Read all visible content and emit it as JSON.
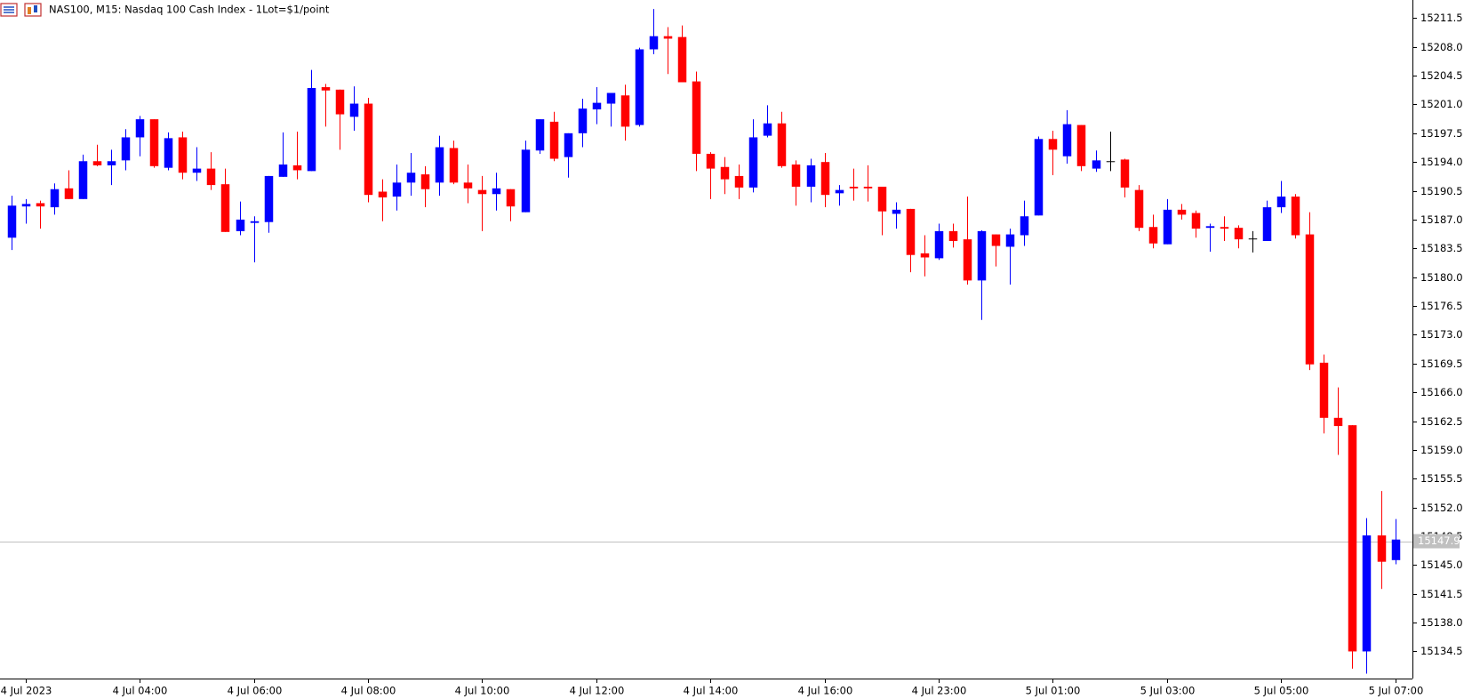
{
  "chart_data": {
    "type": "candlestick",
    "title": "NAS100, M15:  Nasdaq 100 Cash Index - 1Lot=$1/point",
    "categories": [
      null,
      "4 Jul 2023",
      null,
      null,
      null,
      null,
      null,
      null,
      null,
      "4 Jul 04:00",
      null,
      null,
      null,
      null,
      null,
      null,
      null,
      "4 Jul 06:00",
      null,
      null,
      null,
      null,
      null,
      null,
      null,
      "4 Jul 08:00",
      null,
      null,
      null,
      null,
      null,
      null,
      null,
      "4 Jul 10:00",
      null,
      null,
      null,
      null,
      null,
      null,
      null,
      "4 Jul 12:00",
      null,
      null,
      null,
      null,
      null,
      null,
      null,
      "4 Jul 14:00",
      null,
      null,
      null,
      null,
      null,
      null,
      null,
      "4 Jul 16:00",
      null,
      null,
      null,
      null,
      null,
      null,
      null,
      "4 Jul 23:00",
      null,
      null,
      null,
      null,
      null,
      null,
      null,
      "5 Jul 01:00",
      null,
      null,
      null,
      null,
      null,
      null,
      null,
      "5 Jul 03:00",
      null,
      null,
      null,
      null,
      null,
      null,
      null,
      "5 Jul 05:00",
      null,
      null,
      null,
      null,
      null,
      null,
      null,
      "5 Jul 07:00"
    ],
    "open": [
      15184.8,
      15188.6,
      15189.0,
      15188.5,
      15190.8,
      15189.5,
      15194.1,
      15193.6,
      15194.2,
      15197.0,
      15199.2,
      15193.3,
      15197.0,
      15192.7,
      15193.2,
      15191.3,
      15185.6,
      15186.6,
      15186.7,
      15192.2,
      15193.6,
      15192.9,
      15203.1,
      15202.8,
      15199.5,
      15201.1,
      15190.4,
      15189.8,
      15191.5,
      15192.5,
      15191.5,
      15195.7,
      15191.5,
      15190.6,
      15190.1,
      15190.7,
      15187.9,
      15195.4,
      15198.9,
      15194.6,
      15197.5,
      15200.4,
      15201.1,
      15202.1,
      15198.5,
      15207.7,
      15209.3,
      15209.2,
      15203.8,
      15195.0,
      15193.4,
      15192.3,
      15190.9,
      15197.2,
      15198.7,
      15193.7,
      15191.0,
      15194.0,
      15190.2,
      15191.0,
      15191.0,
      15191.0,
      15187.7,
      15188.3,
      15182.9,
      15182.3,
      15185.6,
      15184.6,
      15179.6,
      15185.2,
      15183.7,
      15185.1,
      15187.5,
      15196.8,
      15194.7,
      15198.5,
      15193.2,
      15194.1,
      15194.3,
      15190.6,
      15186.1,
      15184.0,
      15188.2,
      15187.8,
      15186.0,
      15186.1,
      15186.0,
      15184.7,
      15184.4,
      15188.5,
      15189.8,
      15185.2,
      15169.6,
      15162.9,
      15162.0,
      15134.5,
      15148.6,
      15145.6
    ],
    "high": [
      15189.9,
      15189.5,
      15189.3,
      15191.4,
      15193.0,
      15194.9,
      15196.1,
      15195.5,
      15198.0,
      15199.6,
      15199.2,
      15197.6,
      15197.7,
      15195.8,
      15195.2,
      15193.2,
      15189.2,
      15187.4,
      15192.3,
      15197.6,
      15197.7,
      15205.2,
      15203.5,
      15202.8,
      15203.2,
      15201.8,
      15191.9,
      15193.7,
      15195.1,
      15193.5,
      15197.2,
      15196.6,
      15193.7,
      15192.3,
      15192.7,
      15190.7,
      15196.6,
      15199.2,
      15200.1,
      15197.5,
      15201.7,
      15203.1,
      15202.4,
      15203.4,
      15207.9,
      15212.6,
      15210.4,
      15210.6,
      15205.0,
      15195.2,
      15194.6,
      15193.7,
      15199.2,
      15200.9,
      15200.1,
      15194.2,
      15194.4,
      15195.1,
      15191.2,
      15193.2,
      15193.6,
      15191.0,
      15189.1,
      15188.3,
      15185.1,
      15186.5,
      15186.5,
      15189.8,
      15185.7,
      15185.2,
      15185.9,
      15189.3,
      15197.1,
      15197.8,
      15200.3,
      15198.5,
      15195.4,
      15197.7,
      15194.4,
      15191.2,
      15187.6,
      15189.5,
      15188.9,
      15188.1,
      15186.5,
      15187.4,
      15186.3,
      15185.6,
      15189.3,
      15191.7,
      15190.1,
      15187.9,
      15170.6,
      15166.6,
      15162.0,
      15150.7,
      15154.0,
      15150.6
    ],
    "low": [
      15183.3,
      15186.5,
      15185.9,
      15187.6,
      15189.5,
      15189.5,
      15193.5,
      15191.2,
      15193.0,
      15194.7,
      15193.3,
      15193.0,
      15191.9,
      15191.7,
      15190.6,
      15185.5,
      15185.1,
      15181.8,
      15185.4,
      15192.2,
      15191.9,
      15192.9,
      15198.3,
      15195.5,
      15197.8,
      15189.1,
      15186.8,
      15188.1,
      15189.9,
      15188.5,
      15189.9,
      15191.3,
      15189.0,
      15185.6,
      15188.1,
      15186.8,
      15187.9,
      15195.0,
      15194.1,
      15192.1,
      15195.8,
      15198.6,
      15198.3,
      15196.6,
      15198.3,
      15207.1,
      15204.7,
      15203.7,
      15192.9,
      15189.5,
      15190.1,
      15189.5,
      15190.3,
      15197.0,
      15193.3,
      15188.7,
      15189.1,
      15188.5,
      15188.7,
      15189.3,
      15189.2,
      15185.1,
      15185.9,
      15180.6,
      15180.1,
      15182.1,
      15183.6,
      15179.1,
      15174.8,
      15181.3,
      15179.1,
      15183.8,
      15187.5,
      15192.4,
      15193.8,
      15192.9,
      15192.8,
      15192.9,
      15189.7,
      15185.6,
      15183.5,
      15184.0,
      15187.0,
      15184.8,
      15183.1,
      15184.4,
      15183.5,
      15183.0,
      15184.4,
      15187.8,
      15184.7,
      15168.7,
      15161.0,
      15158.4,
      15132.4,
      15131.8,
      15142.1,
      15145.1
    ],
    "close": [
      15188.7,
      15188.9,
      15188.6,
      15190.7,
      15189.5,
      15194.1,
      15193.6,
      15194.1,
      15197.0,
      15199.2,
      15193.5,
      15196.9,
      15192.7,
      15193.2,
      15191.2,
      15185.5,
      15187.0,
      15186.8,
      15192.3,
      15193.7,
      15193.0,
      15203.0,
      15202.7,
      15199.8,
      15201.1,
      15190.0,
      15189.7,
      15191.5,
      15192.7,
      15190.7,
      15195.8,
      15191.5,
      15190.8,
      15190.1,
      15190.8,
      15188.6,
      15195.5,
      15199.2,
      15194.4,
      15197.5,
      15200.5,
      15201.2,
      15202.4,
      15198.3,
      15207.7,
      15209.3,
      15209.0,
      15203.7,
      15195.0,
      15193.2,
      15191.9,
      15190.9,
      15197.0,
      15198.7,
      15193.5,
      15191.0,
      15193.6,
      15190.0,
      15190.6,
      15190.8,
      15190.8,
      15188.0,
      15188.2,
      15182.7,
      15182.4,
      15185.6,
      15184.4,
      15179.6,
      15185.6,
      15183.8,
      15185.2,
      15187.4,
      15196.8,
      15195.5,
      15198.6,
      15193.5,
      15194.2,
      15194.1,
      15190.9,
      15186.0,
      15184.1,
      15188.2,
      15187.6,
      15185.9,
      15186.2,
      15185.9,
      15184.6,
      15184.7,
      15188.5,
      15189.8,
      15185.1,
      15169.4,
      15162.9,
      15161.9,
      15134.5,
      15148.6,
      15145.4,
      15148.1
    ],
    "up_color": "#0000ff",
    "down_color": "#ff0000",
    "flat_color": "#000000",
    "current_price": 15147.9,
    "current_price_color": "#c0c0c0",
    "ylim": [
      15131.2,
      15213.7
    ],
    "yticks": [
      15134.5,
      {
        "value": 15138.0,
        "label": "15138.0"
      },
      15141.5,
      {
        "value": 15145.0,
        "label": "15145.0"
      },
      15148.5,
      {
        "value": 15152.0,
        "label": "15152.0"
      },
      15155.5,
      {
        "value": 15159.0,
        "label": "15159.0"
      },
      15162.5,
      {
        "value": 15166.0,
        "label": "15166.0"
      },
      15169.5,
      {
        "value": 15173.0,
        "label": "15173.0"
      },
      15176.5,
      {
        "value": 15180.0,
        "label": "15180.0"
      },
      15183.5,
      {
        "value": 15187.0,
        "label": "15187.0"
      },
      15190.5,
      {
        "value": 15194.0,
        "label": "15194.0"
      },
      15197.5,
      {
        "value": 15201.0,
        "label": "15201.0"
      },
      15204.5,
      {
        "value": 15208.0,
        "label": "15208.0"
      },
      15211.5
    ],
    "grid": false
  }
}
